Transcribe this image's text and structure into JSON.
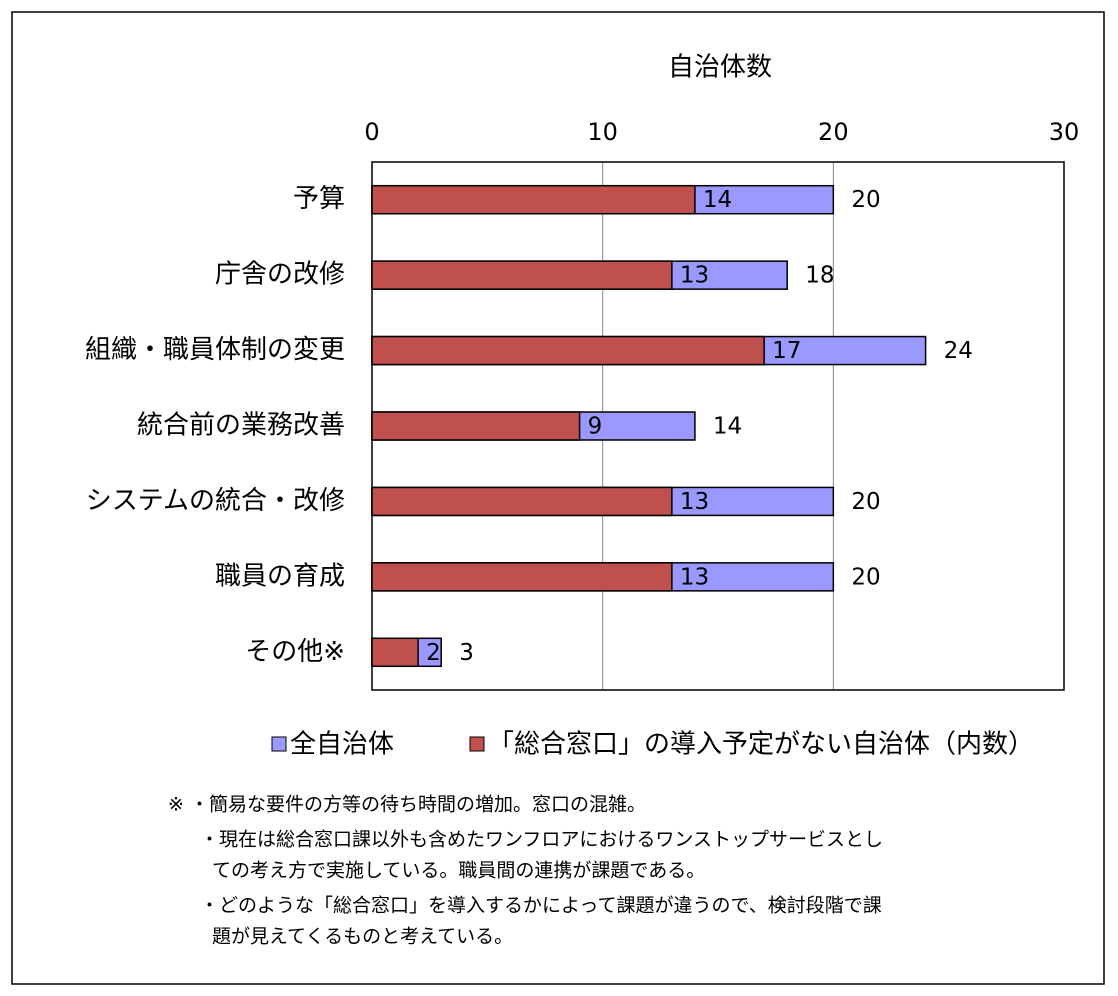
{
  "chart_data": {
    "type": "bar",
    "orientation": "horizontal",
    "overlap": true,
    "x_label": "自治体数",
    "categories": [
      "予算",
      "庁舎の改修",
      "組織・職員体制の変更",
      "統合前の業務改善",
      "システムの統合・改修",
      "職員の育成",
      "その他※"
    ],
    "series": [
      {
        "name": "全自治体",
        "color": "#9999ff",
        "values": [
          20,
          18,
          24,
          14,
          20,
          20,
          3
        ]
      },
      {
        "name": "「総合窓口」の導入予定がない自治体（内数）",
        "color": "#c0504d",
        "values": [
          14,
          13,
          17,
          9,
          13,
          13,
          2
        ]
      }
    ],
    "xlim": [
      0,
      30
    ],
    "xticks": [
      0,
      10,
      20,
      30
    ],
    "grid": true,
    "legend": "bottom",
    "notes": [
      "※ ・簡易な要件の方等の待ち時間の増加。窓口の混雑。",
      "・現在は総合窓口課以外も含めたワンフロアにおけるワンストップサービスとし",
      "ての考え方で実施している。職員間の連携が課題である。",
      "・どのような「総合窓口」を導入するかによって課題が違うので、検討段階で課",
      "題が見えてくるものと考えている。"
    ]
  }
}
